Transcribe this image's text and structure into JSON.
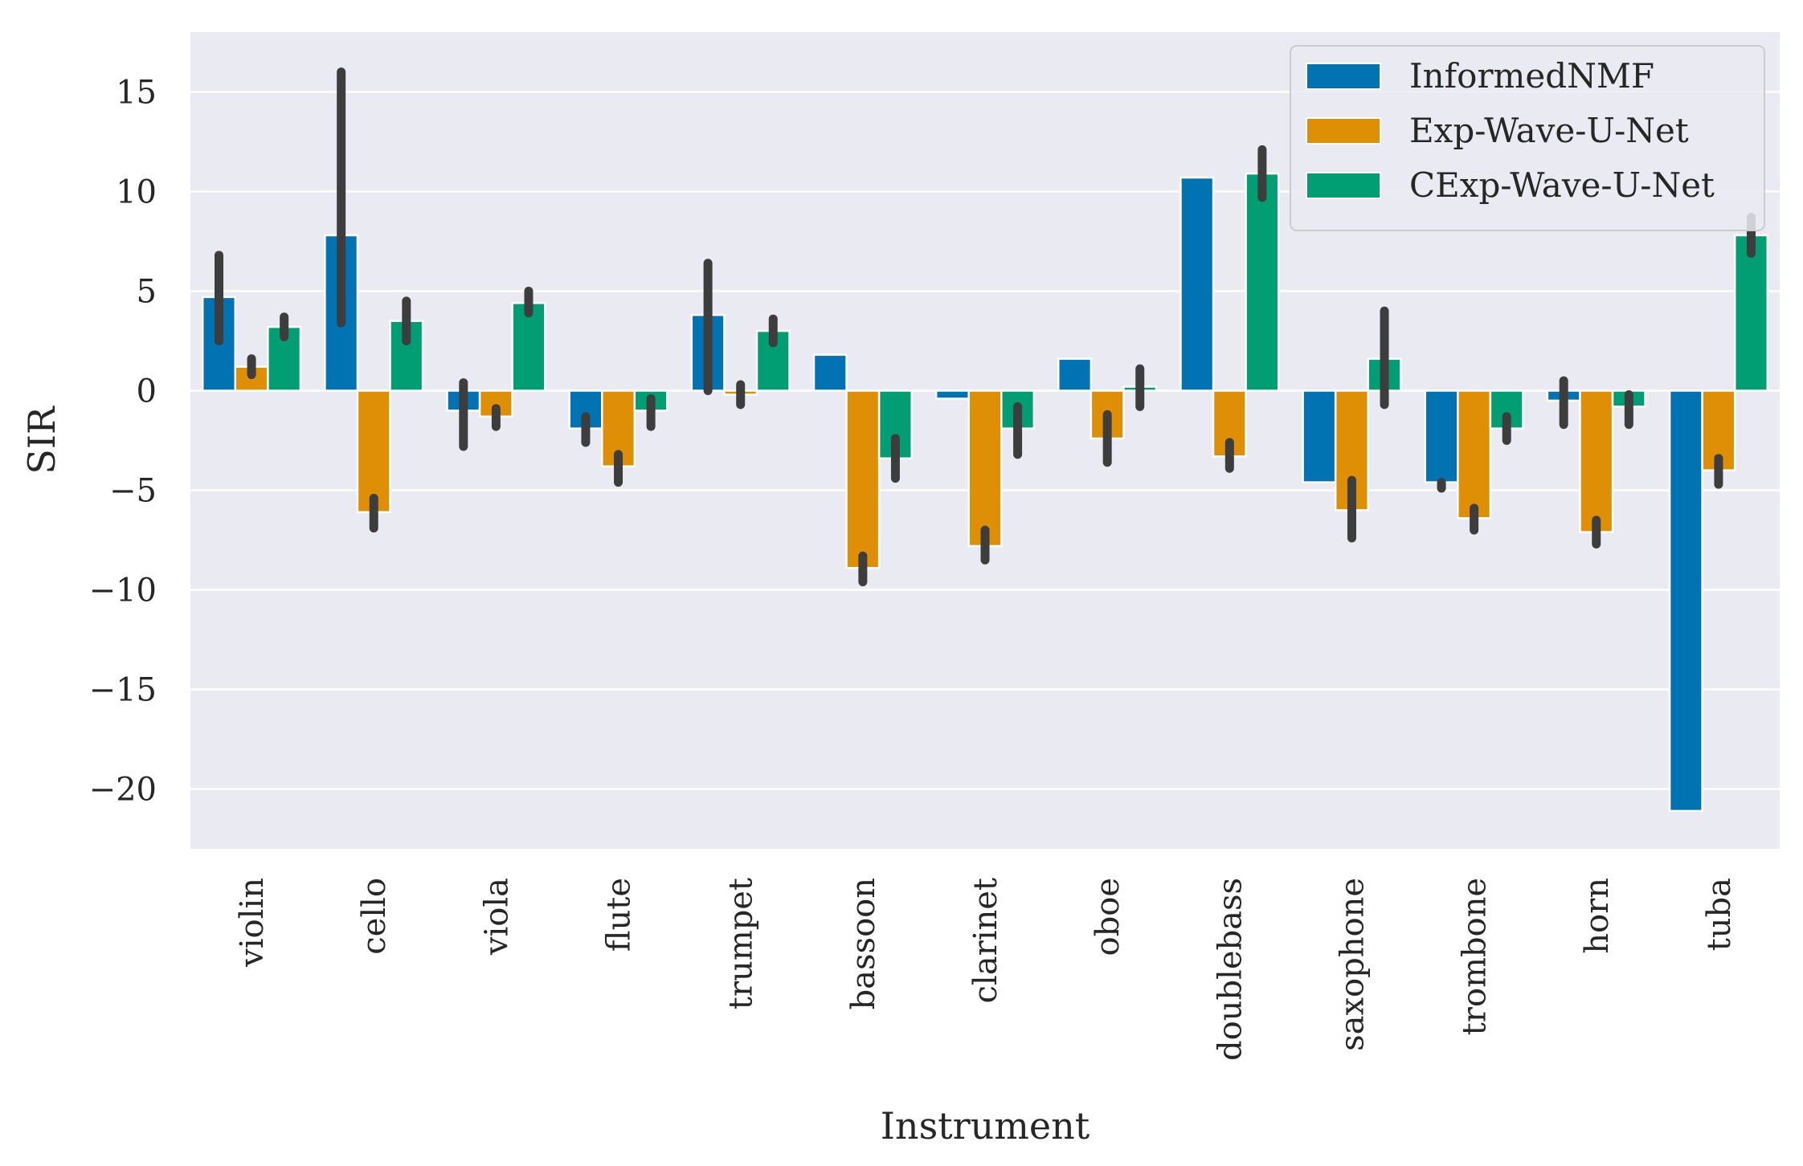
{
  "chart_data": {
    "type": "bar",
    "title": "",
    "xlabel": "Instrument",
    "ylabel": "SIR",
    "ylim": [
      -23,
      18
    ],
    "yticks": [
      15,
      10,
      5,
      0,
      -5,
      -10,
      -15,
      -20
    ],
    "ytick_labels": [
      "15",
      "10",
      "5",
      "0",
      "−5",
      "−10",
      "−15",
      "−20"
    ],
    "grid": true,
    "legend_position": "top-right",
    "background": "#eaeaf2",
    "categories": [
      "violin",
      "cello",
      "viola",
      "flute",
      "trumpet",
      "bassoon",
      "clarinet",
      "oboe",
      "doublebass",
      "saxophone",
      "trombone",
      "horn",
      "tuba"
    ],
    "series": [
      {
        "name": "InformedNMF",
        "color": "#0173b2",
        "values": [
          4.7,
          7.8,
          -1.0,
          -1.9,
          3.8,
          1.8,
          -0.4,
          1.6,
          10.7,
          -4.6,
          -4.6,
          -0.5,
          -21.1
        ],
        "error_low": [
          2.5,
          3.4,
          -2.8,
          -2.6,
          0.0,
          1.8,
          -0.4,
          1.6,
          10.7,
          -4.6,
          -4.9,
          -1.7,
          -21.1
        ],
        "error_high": [
          6.8,
          16.0,
          0.4,
          -1.3,
          6.4,
          1.8,
          -0.4,
          1.6,
          10.7,
          -4.6,
          -4.6,
          0.5,
          -21.1
        ]
      },
      {
        "name": "Exp-Wave-U-Net",
        "color": "#de8f05",
        "values": [
          1.2,
          -6.1,
          -1.3,
          -3.8,
          -0.2,
          -8.9,
          -7.8,
          -2.4,
          -3.3,
          -6.0,
          -6.4,
          -7.1,
          -4.0
        ],
        "error_low": [
          0.8,
          -6.9,
          -1.8,
          -4.6,
          -0.7,
          -9.6,
          -8.5,
          -3.6,
          -3.9,
          -7.4,
          -7.0,
          -7.7,
          -4.7
        ],
        "error_high": [
          1.6,
          -5.4,
          -0.9,
          -3.2,
          0.3,
          -8.3,
          -7.0,
          -1.2,
          -2.6,
          -4.5,
          -5.9,
          -6.5,
          -3.4
        ]
      },
      {
        "name": "CExp-Wave-U-Net",
        "color": "#029e73",
        "values": [
          3.2,
          3.5,
          4.4,
          -1.0,
          3.0,
          -3.4,
          -1.9,
          0.2,
          10.9,
          1.6,
          -1.9,
          -0.8,
          7.8
        ],
        "error_low": [
          2.7,
          2.5,
          3.9,
          -1.8,
          2.4,
          -4.4,
          -3.2,
          -0.8,
          9.7,
          -0.7,
          -2.5,
          -1.7,
          6.9
        ],
        "error_high": [
          3.7,
          4.5,
          5.0,
          -0.4,
          3.6,
          -2.4,
          -0.8,
          1.1,
          12.1,
          4.0,
          -1.3,
          -0.2,
          8.7
        ]
      }
    ]
  }
}
